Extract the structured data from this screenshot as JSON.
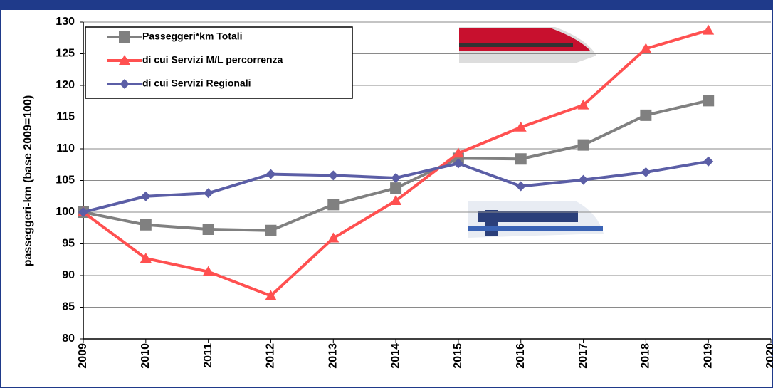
{
  "chart_data": {
    "type": "line",
    "y_label": "passeggeri-km (base 2009=100)",
    "x": [
      2009,
      2010,
      2011,
      2012,
      2013,
      2014,
      2015,
      2016,
      2017,
      2018,
      2019
    ],
    "xlim": [
      2009,
      2020
    ],
    "xticks": [
      2009,
      2010,
      2011,
      2012,
      2013,
      2014,
      2015,
      2016,
      2017,
      2018,
      2019,
      2020
    ],
    "ylim": [
      80,
      130
    ],
    "yticks": [
      80,
      85,
      90,
      95,
      100,
      105,
      110,
      115,
      120,
      125,
      130
    ],
    "grid": true,
    "legend": "top-left",
    "series": [
      {
        "name": "Passeggeri*km Totali",
        "color": "#808080",
        "marker": "square",
        "values": [
          100,
          98,
          97.3,
          97.1,
          101.2,
          103.8,
          108.5,
          108.4,
          110.6,
          115.3,
          117.6
        ]
      },
      {
        "name": "di cui Servizi M/L percorrenza",
        "color": "#ff5050",
        "marker": "triangle",
        "values": [
          100,
          92.7,
          90.6,
          86.8,
          95.9,
          101.8,
          109.3,
          113.4,
          116.9,
          125.8,
          128.7
        ]
      },
      {
        "name": "di cui Servizi Regionali",
        "color": "#5b5ea6",
        "marker": "diamond",
        "values": [
          100,
          102.5,
          103,
          106,
          105.8,
          105.4,
          107.7,
          104.1,
          105.1,
          106.3,
          108
        ]
      }
    ]
  }
}
